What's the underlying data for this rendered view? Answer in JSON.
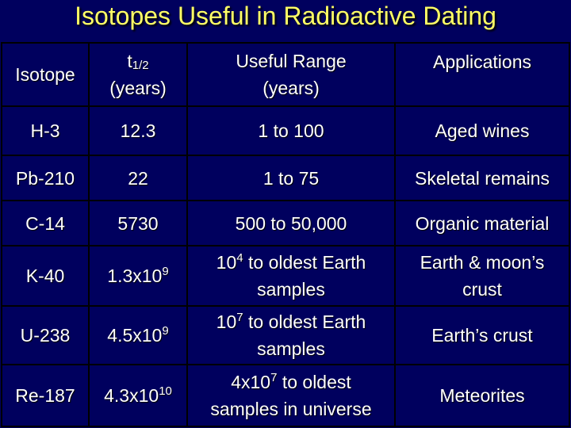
{
  "title": "Isotopes Useful in Radioactive Dating",
  "headers": {
    "isotope": "Isotope",
    "half_life_symbol": "t",
    "half_life_subscript": "1/2",
    "half_life_unit": "(years)",
    "range_line1": "Useful Range",
    "range_line2": "(years)",
    "applications": "Applications"
  },
  "rows": [
    {
      "isotope": "H-3",
      "half_life": "12.3",
      "range": "1 to 100",
      "application": "Aged wines"
    },
    {
      "isotope": "Pb-210",
      "half_life": "22",
      "range": "1 to 75",
      "application": "Skeletal remains"
    },
    {
      "isotope": "C-14",
      "half_life": "5730",
      "range": "500 to 50,000",
      "application": "Organic material"
    },
    {
      "isotope": "K-40",
      "half_life_base": "1.3x10",
      "half_life_exp": "9",
      "range_base": "10",
      "range_exp": "4",
      "range_rest": " to oldest Earth",
      "range_line2": "samples",
      "application_line1": "Earth & moon’s",
      "application_line2": "crust"
    },
    {
      "isotope": "U-238",
      "half_life_base": "4.5x10",
      "half_life_exp": "9",
      "range_base": "10",
      "range_exp": "7",
      "range_rest": " to oldest Earth",
      "range_line2": "samples",
      "application": "Earth’s crust"
    },
    {
      "isotope": "Re-187",
      "half_life_base": "4.3x10",
      "half_life_exp": "10",
      "range_base": "4x10",
      "range_exp": "7",
      "range_rest": " to oldest",
      "range_line2": "samples in universe",
      "application": "Meteorites"
    }
  ]
}
